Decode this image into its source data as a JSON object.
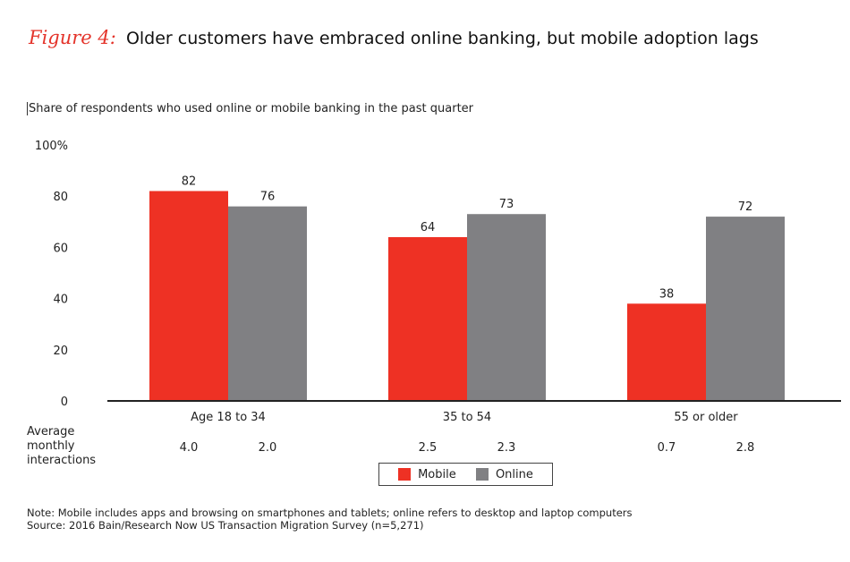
{
  "figure": {
    "label": "Figure 4:",
    "title": "Older customers have embraced online banking, but mobile adoption lags",
    "subtitle": "Share of respondents who used online or mobile banking in the past quarter"
  },
  "interactions": {
    "label_line1": "Average monthly",
    "label_line2": "interactions",
    "values": [
      [
        "4.0",
        "2.0"
      ],
      [
        "2.5",
        "2.3"
      ],
      [
        "0.7",
        "2.8"
      ]
    ]
  },
  "legend": {
    "mobile": "Mobile",
    "online": "Online"
  },
  "notes": {
    "note": "Note: Mobile includes apps and browsing on smartphones and tablets; online refers to desktop and laptop computers",
    "source": "Source: 2016 Bain/Research Now US Transaction Migration Survey (n=5,271)"
  },
  "colors": {
    "mobile": "#ee3124",
    "online": "#808083",
    "title_accent": "#e4342b"
  },
  "chart_data": {
    "type": "bar",
    "categories": [
      "Age 18 to 34",
      "35 to 54",
      "55 or older"
    ],
    "series": [
      {
        "name": "Mobile",
        "values": [
          82,
          64,
          38
        ]
      },
      {
        "name": "Online",
        "values": [
          76,
          73,
          72
        ]
      }
    ],
    "ylim": [
      0,
      100
    ],
    "yticks": [
      "0",
      "20",
      "40",
      "60",
      "80",
      "100%"
    ],
    "legend_position": "bottom",
    "grid": false
  }
}
